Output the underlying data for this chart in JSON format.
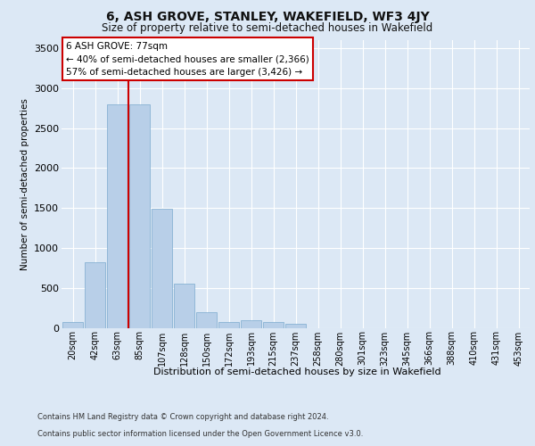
{
  "title": "6, ASH GROVE, STANLEY, WAKEFIELD, WF3 4JY",
  "subtitle": "Size of property relative to semi-detached houses in Wakefield",
  "xlabel": "Distribution of semi-detached houses by size in Wakefield",
  "ylabel": "Number of semi-detached properties",
  "footer_line1": "Contains HM Land Registry data © Crown copyright and database right 2024.",
  "footer_line2": "Contains public sector information licensed under the Open Government Licence v3.0.",
  "annotation_line1": "6 ASH GROVE: 77sqm",
  "annotation_line2": "← 40% of semi-detached houses are smaller (2,366)",
  "annotation_line3": "57% of semi-detached houses are larger (3,426) →",
  "bar_labels": [
    "20sqm",
    "42sqm",
    "63sqm",
    "85sqm",
    "107sqm",
    "128sqm",
    "150sqm",
    "172sqm",
    "193sqm",
    "215sqm",
    "237sqm",
    "258sqm",
    "280sqm",
    "301sqm",
    "323sqm",
    "345sqm",
    "366sqm",
    "388sqm",
    "410sqm",
    "431sqm",
    "453sqm"
  ],
  "bar_values": [
    75,
    820,
    2800,
    2800,
    1490,
    555,
    195,
    75,
    100,
    75,
    50,
    0,
    0,
    0,
    0,
    0,
    0,
    0,
    0,
    0,
    0
  ],
  "bar_color": "#b8cfe8",
  "bar_edge_color": "#7aaace",
  "red_line_index": 3,
  "ylim": [
    0,
    3600
  ],
  "yticks": [
    0,
    500,
    1000,
    1500,
    2000,
    2500,
    3000,
    3500
  ],
  "plot_bg_color": "#dce8f5",
  "fig_bg_color": "#dce8f5",
  "grid_color": "#ffffff",
  "annotation_box_facecolor": "#ffffff",
  "annotation_box_edgecolor": "#cc0000",
  "red_line_color": "#cc0000",
  "title_fontsize": 10,
  "subtitle_fontsize": 8.5
}
